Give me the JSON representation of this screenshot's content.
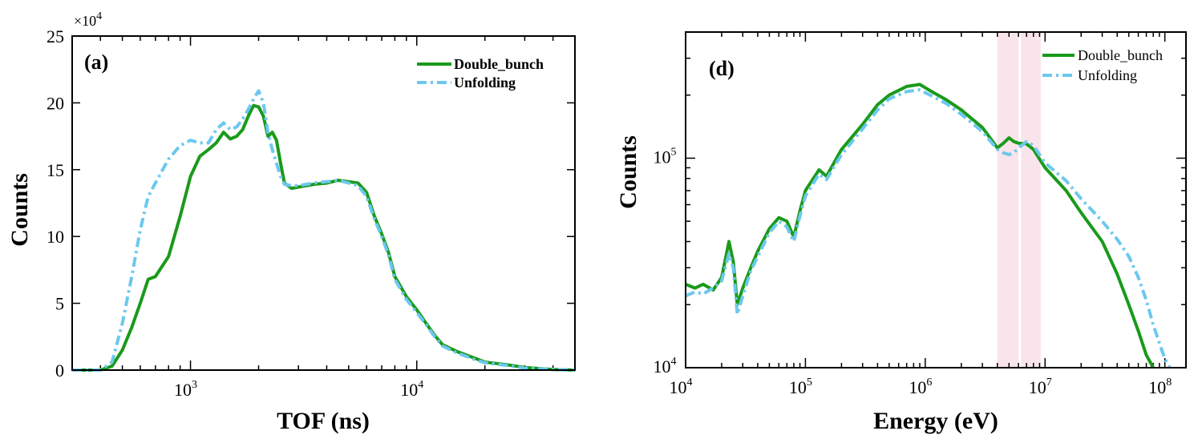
{
  "chart_data": [
    {
      "type": "line",
      "panel_label": "(a)",
      "xlabel": "TOF (ns)",
      "ylabel": "Counts",
      "xscale": "log",
      "xlim": [
        300,
        50000
      ],
      "ylim": [
        0,
        25
      ],
      "y_multiplier": "×10",
      "y_multiplier_exp": "4",
      "xticks": [
        {
          "label": "10",
          "exp": "3",
          "value": 1000
        },
        {
          "label": "10",
          "exp": "4",
          "value": 10000
        }
      ],
      "yticks": [
        "0",
        "5",
        "10",
        "15",
        "20",
        "25"
      ],
      "legend_position": "top-right",
      "series": [
        {
          "name": "Double_bunch",
          "style": "solid",
          "color": "#1a9a1a",
          "x": [
            300,
            400,
            450,
            500,
            550,
            600,
            650,
            700,
            800,
            900,
            1000,
            1100,
            1200,
            1300,
            1400,
            1500,
            1600,
            1700,
            1800,
            1900,
            2000,
            2100,
            2200,
            2300,
            2400,
            2500,
            2600,
            2800,
            3000,
            3500,
            4000,
            4500,
            5000,
            5500,
            6000,
            6500,
            7000,
            7500,
            8000,
            9000,
            10000,
            11000,
            12000,
            13000,
            15000,
            18000,
            20000,
            25000,
            30000,
            40000,
            50000
          ],
          "y": [
            0,
            0,
            0.3,
            1.5,
            3.2,
            5.0,
            6.8,
            7.0,
            8.5,
            11.5,
            14.5,
            16.0,
            16.5,
            17.0,
            17.8,
            17.3,
            17.5,
            18.0,
            19.0,
            19.8,
            19.7,
            19.0,
            17.5,
            17.8,
            17.2,
            15.5,
            14.0,
            13.6,
            13.7,
            13.9,
            14.0,
            14.2,
            14.1,
            14.0,
            13.3,
            11.5,
            10.2,
            8.8,
            7.0,
            5.5,
            4.5,
            3.5,
            2.6,
            1.9,
            1.4,
            0.9,
            0.6,
            0.4,
            0.2,
            0.05,
            0
          ]
        },
        {
          "name": "Unfolding",
          "style": "dashdot",
          "color": "#6cc8ee",
          "x": [
            300,
            400,
            450,
            500,
            550,
            600,
            650,
            700,
            800,
            900,
            1000,
            1100,
            1200,
            1300,
            1400,
            1500,
            1600,
            1700,
            1800,
            1900,
            2000,
            2100,
            2200,
            2300,
            2400,
            2500,
            2600,
            2800,
            3000,
            3500,
            4000,
            4500,
            5000,
            5500,
            6000,
            6500,
            7000,
            7500,
            8000,
            9000,
            10000,
            11000,
            12000,
            13000,
            15000,
            18000,
            20000,
            25000,
            30000,
            40000,
            50000
          ],
          "y": [
            0,
            0,
            0.6,
            3.5,
            7.0,
            10.5,
            13.0,
            14.0,
            15.8,
            16.8,
            17.2,
            17.0,
            17.0,
            18.0,
            18.5,
            18.0,
            18.2,
            18.8,
            19.5,
            20.3,
            20.9,
            20.0,
            17.8,
            16.5,
            15.5,
            14.5,
            13.9,
            13.8,
            13.8,
            14.0,
            14.1,
            14.2,
            14.0,
            13.8,
            13.0,
            11.3,
            10.0,
            8.6,
            6.8,
            5.3,
            4.3,
            3.4,
            2.5,
            1.8,
            1.3,
            0.8,
            0.55,
            0.35,
            0.15,
            0.05,
            0
          ]
        }
      ]
    },
    {
      "type": "line",
      "panel_label": "(d)",
      "xlabel": "Energy (eV)",
      "ylabel": "Counts",
      "xscale": "log",
      "yscale": "log",
      "xlim": [
        10000,
        150000000
      ],
      "ylim": [
        10000,
        400000
      ],
      "xticks": [
        {
          "label": "10",
          "exp": "4",
          "value": 10000
        },
        {
          "label": "10",
          "exp": "5",
          "value": 100000
        },
        {
          "label": "10",
          "exp": "6",
          "value": 1000000
        },
        {
          "label": "10",
          "exp": "7",
          "value": 10000000
        },
        {
          "label": "10",
          "exp": "8",
          "value": 100000000
        }
      ],
      "yticks": [
        {
          "label": "10",
          "exp": "4",
          "value": 10000
        },
        {
          "label": "10",
          "exp": "5",
          "value": 100000
        }
      ],
      "highlight_bands": [
        [
          4000000,
          6000000
        ],
        [
          6300000,
          9200000
        ]
      ],
      "legend_position": "top-right",
      "series": [
        {
          "name": "Double_bunch",
          "style": "solid",
          "color": "#1a9a1a",
          "x": [
            10000,
            12000,
            14000,
            17000,
            20000,
            23000,
            25000,
            27000,
            30000,
            35000,
            40000,
            50000,
            60000,
            70000,
            80000,
            90000,
            100000,
            130000,
            150000,
            200000,
            300000,
            400000,
            500000,
            700000,
            900000,
            1100000,
            1500000,
            2000000,
            3000000,
            4000000,
            4500000,
            5000000,
            5500000,
            6000000,
            7000000,
            8000000,
            10000000,
            15000000,
            20000000,
            30000000,
            40000000,
            50000000,
            60000000,
            70000000,
            80000000
          ],
          "y": [
            25000,
            24000,
            25000,
            23500,
            27000,
            40000,
            32000,
            20000,
            24000,
            30000,
            36000,
            46000,
            52000,
            50000,
            42000,
            56000,
            70000,
            88000,
            82000,
            110000,
            145000,
            180000,
            200000,
            220000,
            225000,
            210000,
            190000,
            170000,
            140000,
            112000,
            118000,
            125000,
            120000,
            118000,
            117000,
            110000,
            90000,
            70000,
            55000,
            40000,
            28000,
            20000,
            15000,
            11500,
            10000
          ]
        },
        {
          "name": "Unfolding",
          "style": "dashdot",
          "color": "#6cc8ee",
          "x": [
            10000,
            12000,
            14000,
            17000,
            20000,
            23000,
            25000,
            27000,
            30000,
            35000,
            40000,
            50000,
            60000,
            70000,
            80000,
            90000,
            100000,
            130000,
            150000,
            200000,
            300000,
            400000,
            500000,
            700000,
            900000,
            1100000,
            1500000,
            2000000,
            3000000,
            4000000,
            4500000,
            5000000,
            5500000,
            6000000,
            7000000,
            8000000,
            10000000,
            15000000,
            20000000,
            30000000,
            40000000,
            50000000,
            60000000,
            70000000,
            80000000,
            100000000,
            110000000
          ],
          "y": [
            22000,
            23000,
            22500,
            24000,
            26000,
            35000,
            30000,
            18000,
            22000,
            29000,
            34000,
            44000,
            50000,
            47000,
            40000,
            53000,
            66000,
            84000,
            79000,
            104000,
            138000,
            170000,
            192000,
            208000,
            212000,
            200000,
            182000,
            162000,
            134000,
            110000,
            106000,
            104000,
            106000,
            112000,
            120000,
            115000,
            95000,
            78000,
            64000,
            50000,
            41000,
            34000,
            27000,
            21000,
            16000,
            11000,
            10000
          ]
        }
      ]
    }
  ]
}
